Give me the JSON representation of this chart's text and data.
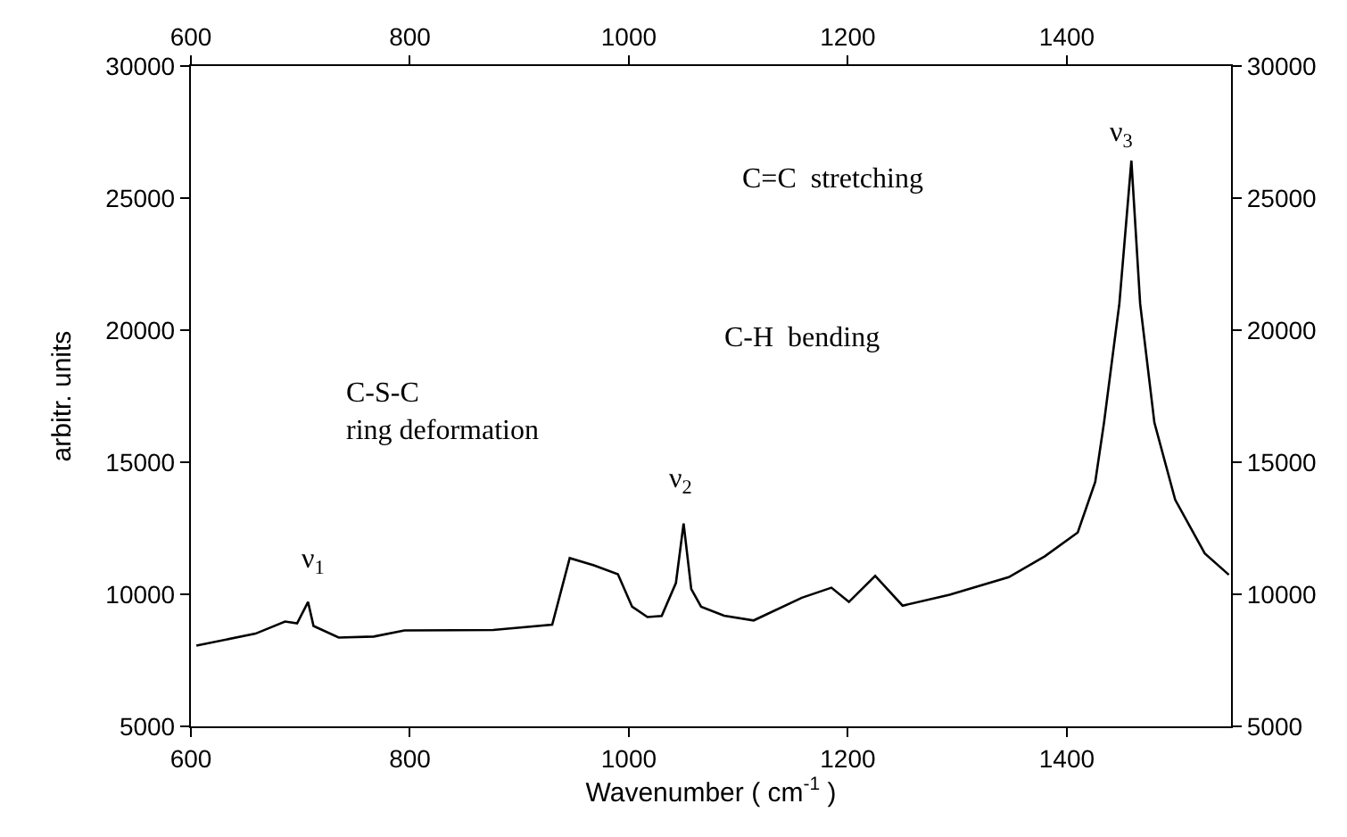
{
  "chart_data": {
    "type": "line",
    "xlabel": "Wavenumber ( cm$^{-1}$ )",
    "ylabel": "arbitr. units",
    "x": [
      605,
      659,
      686,
      697,
      707,
      712,
      735,
      767,
      795,
      876,
      930,
      946,
      968,
      990,
      1003,
      1017,
      1030,
      1043,
      1050,
      1057,
      1066,
      1087,
      1114,
      1158,
      1185,
      1201,
      1225,
      1250,
      1293,
      1347,
      1380,
      1410,
      1426,
      1434,
      1448,
      1459,
      1467,
      1480,
      1499,
      1526,
      1548
    ],
    "series": [
      {
        "color": "#000000",
        "values": [
          8060,
          8510,
          8970,
          8900,
          9710,
          8800,
          8360,
          8400,
          8630,
          8650,
          8850,
          11370,
          11100,
          10760,
          9530,
          9140,
          9180,
          10430,
          12680,
          10200,
          9530,
          9190,
          9010,
          9870,
          10250,
          9710,
          10700,
          9570,
          9980,
          10650,
          11440,
          12340,
          14260,
          16500,
          21000,
          26420,
          21000,
          16500,
          13580,
          11550,
          10740
        ]
      }
    ],
    "xlim": [
      600,
      1550
    ],
    "xticks": [
      600,
      800,
      1000,
      1200,
      1400
    ],
    "x2lim": [
      600,
      1550
    ],
    "x2ticks": [
      600,
      800,
      1000,
      1200,
      1400
    ],
    "ylim": [
      5000,
      30000
    ],
    "yticks": [
      5000,
      10000,
      15000,
      20000,
      25000,
      30000
    ],
    "y2lim": [
      5000,
      30000
    ],
    "y2ticks": [
      5000,
      10000,
      15000,
      20000,
      25000,
      30000
    ],
    "annotations": [
      "ν$_{1}$",
      "ν$_{2}$",
      "ν$_{3}$",
      "C-S-C\nring deformation",
      "C-H  bending",
      "C=C  stretching"
    ],
    "marker": "none",
    "line_style": "solid"
  }
}
